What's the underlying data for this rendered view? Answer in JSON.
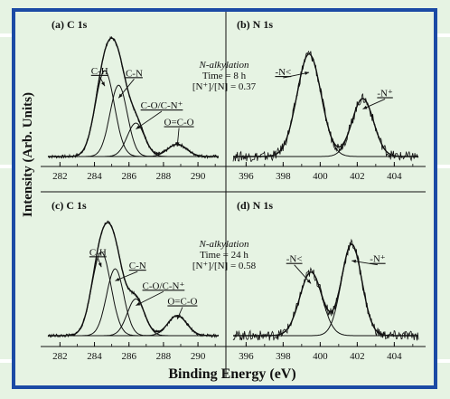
{
  "figure": {
    "ylabel": "Intensity (Arb. Units)",
    "xlabel": "Binding Energy (eV)"
  },
  "colors": {
    "frame": "#1b4aa5",
    "background": "#e6f3e3",
    "line": "#111111"
  },
  "chart_data": [
    {
      "id": "a",
      "type": "line",
      "title": "(a) C 1s",
      "xlim": [
        281.3,
        291.2
      ],
      "ylim": [
        0,
        1.12
      ],
      "xticks": [
        282,
        284,
        286,
        288,
        290
      ],
      "components": [
        {
          "label": "C-H",
          "center": 284.6,
          "amplitude": 0.77,
          "width": 0.55
        },
        {
          "label": "C-N",
          "center": 285.4,
          "amplitude": 0.64,
          "width": 0.5
        },
        {
          "label": "C-O/C-N⁺",
          "center": 286.4,
          "amplitude": 0.3,
          "width": 0.5
        },
        {
          "label": "O=C-O",
          "center": 288.8,
          "amplitude": 0.11,
          "width": 0.55
        }
      ],
      "annotations": [
        {
          "text": "C-H",
          "x": 284.3,
          "y": 0.74
        },
        {
          "text": "C-N",
          "x": 286.3,
          "y": 0.72
        },
        {
          "text": "C-O/C-N⁺",
          "x": 287.9,
          "y": 0.43
        },
        {
          "text": "O=C-O",
          "x": 288.9,
          "y": 0.28
        }
      ],
      "note": []
    },
    {
      "id": "b",
      "type": "line",
      "title": "(b) N 1s",
      "xlim": [
        395.3,
        405.3
      ],
      "ylim": [
        0,
        1.12
      ],
      "xticks": [
        396,
        398,
        400,
        402,
        404
      ],
      "components": [
        {
          "label": "-N<",
          "center": 399.4,
          "amplitude": 0.92,
          "width": 0.65
        },
        {
          "label": "-N⁺",
          "center": 402.3,
          "amplitude": 0.52,
          "width": 0.58
        }
      ],
      "annotations": [
        {
          "text": "-N<",
          "x": 398.0,
          "y": 0.73
        },
        {
          "text": "-N⁺",
          "x": 403.5,
          "y": 0.54
        }
      ],
      "note": [
        "N-alkylation",
        "Time = 8 h",
        "[N⁺]/[N] = 0.37"
      ]
    },
    {
      "id": "c",
      "type": "line",
      "title": "(c) C 1s",
      "xlim": [
        281.3,
        291.2
      ],
      "ylim": [
        0,
        1.12
      ],
      "xticks": [
        282,
        284,
        286,
        288,
        290
      ],
      "components": [
        {
          "label": "C-H",
          "center": 284.4,
          "amplitude": 0.75,
          "width": 0.55
        },
        {
          "label": "C-N",
          "center": 285.2,
          "amplitude": 0.6,
          "width": 0.5
        },
        {
          "label": "C-O/C-N⁺",
          "center": 286.4,
          "amplitude": 0.33,
          "width": 0.5
        },
        {
          "label": "O=C-O",
          "center": 288.8,
          "amplitude": 0.18,
          "width": 0.55
        }
      ],
      "annotations": [
        {
          "text": "C-H",
          "x": 284.2,
          "y": 0.72
        },
        {
          "text": "C-N",
          "x": 286.5,
          "y": 0.6
        },
        {
          "text": "C-O/C-N⁺",
          "x": 288.0,
          "y": 0.42
        },
        {
          "text": "O=C-O",
          "x": 289.1,
          "y": 0.28
        }
      ],
      "note": []
    },
    {
      "id": "d",
      "type": "line",
      "title": "(d) N 1s",
      "xlim": [
        395.3,
        405.3
      ],
      "ylim": [
        0,
        1.12
      ],
      "xticks": [
        396,
        398,
        400,
        402,
        404
      ],
      "components": [
        {
          "label": "-N<",
          "center": 399.5,
          "amplitude": 0.57,
          "width": 0.6
        },
        {
          "label": "-N⁺",
          "center": 401.7,
          "amplitude": 0.82,
          "width": 0.55
        }
      ],
      "annotations": [
        {
          "text": "-N<",
          "x": 398.6,
          "y": 0.66
        },
        {
          "text": "-N⁺",
          "x": 403.1,
          "y": 0.66
        }
      ],
      "note": [
        "N-alkylation",
        "Time = 24 h",
        "[N⁺]/[N] = 0.58"
      ]
    }
  ]
}
